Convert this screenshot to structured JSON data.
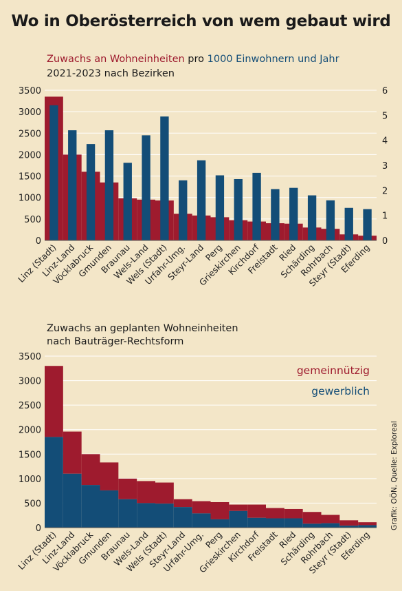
{
  "title": "Wo in Oberösterreich von wem gebaut wird",
  "credit": "Grafik: OÖN, Quelle: Exploreal",
  "colors": {
    "red": "#9e1b2e",
    "blue": "#134d77",
    "background": "#f3e6c8",
    "grid": "#ffffff"
  },
  "chart_data": [
    {
      "type": "bar",
      "subtitle_red": "Zuwachs an Wohneinheiten",
      "subtitle_mid": " pro ",
      "subtitle_blue": "1000 Einwohnern und Jahr",
      "subtitle_line2": "2021-2023 nach Bezirken",
      "categories": [
        "Linz (Stadt)",
        "Linz-Land",
        "Vöcklabruck",
        "Gmunden",
        "Braunau",
        "Wels-Land",
        "Wels (Stadt)",
        "Urfahr-Umg.",
        "Steyr-Land",
        "Perg",
        "Grieskirchen",
        "Kirchdorf",
        "Freistadt",
        "Ried",
        "Schärding",
        "Rohrbach",
        "Steyr (Stadt)",
        "Eferding"
      ],
      "ylim": [
        0,
        3500
      ],
      "yticks": [
        0,
        500,
        1000,
        1500,
        2000,
        2500,
        3000,
        3500
      ],
      "y2lim": [
        0,
        6
      ],
      "y2ticks": [
        0,
        1,
        2,
        3,
        4,
        5,
        6
      ],
      "series": [
        {
          "values": [
            3350,
            2000,
            1600,
            1350,
            980,
            950,
            930,
            620,
            580,
            540,
            470,
            440,
            400,
            390,
            300,
            270,
            140,
            110
          ]
        },
        {
          "values": [
            5.4,
            4.4,
            3.85,
            4.4,
            3.1,
            4.2,
            4.95,
            2.4,
            3.2,
            2.6,
            2.45,
            2.7,
            2.05,
            2.1,
            1.8,
            1.6,
            1.3,
            1.25
          ]
        }
      ]
    },
    {
      "type": "bar",
      "stacked": true,
      "subtitle": "Zuwachs an geplanten Wohneinheiten",
      "subtitle_line2": "nach Bauträger-Rechtsform",
      "categories": [
        "Linz (Stadt)",
        "Linz-Land",
        "Vöcklabruck",
        "Gmunden",
        "Braunau",
        "Wels-Land",
        "Wels (Stadt)",
        "Steyr-Land",
        "Urfahr-Umg.",
        "Perg",
        "Grieskirchen",
        "Kirchdorf",
        "Freistadt",
        "Ried",
        "Schärding",
        "Rohrbach",
        "Steyr (Stadt)",
        "Eferding"
      ],
      "ylim": [
        0,
        3500
      ],
      "yticks": [
        0,
        500,
        1000,
        1500,
        2000,
        2500,
        3000,
        3500
      ],
      "legend": [
        "gemeinnützig",
        "gewerblich"
      ],
      "legend_position": "top-right",
      "series": [
        {
          "name": "gewerblich",
          "values": [
            1850,
            1100,
            870,
            760,
            580,
            500,
            490,
            420,
            290,
            170,
            340,
            200,
            190,
            190,
            80,
            90,
            40,
            50
          ]
        },
        {
          "name": "gemeinnützig",
          "values": [
            1450,
            860,
            630,
            570,
            420,
            450,
            430,
            160,
            250,
            350,
            130,
            270,
            210,
            190,
            240,
            170,
            110,
            60
          ]
        }
      ]
    }
  ]
}
